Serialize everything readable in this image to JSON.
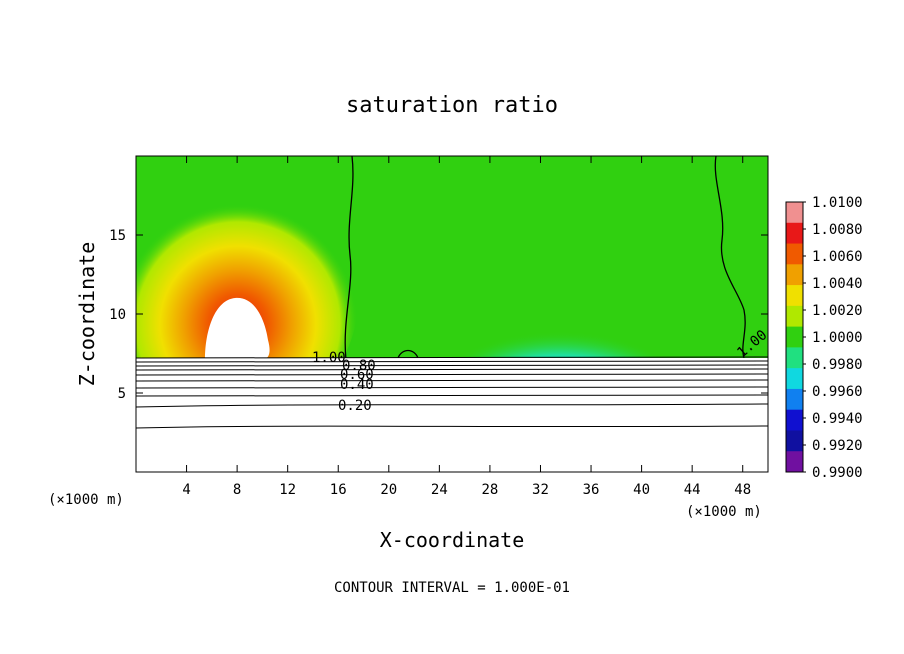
{
  "chart_data": {
    "type": "heatmap",
    "title": "saturation ratio",
    "xlabel": "X-coordinate",
    "ylabel": "Z-coordinate",
    "x_unit_label": "(×1000 m)",
    "z_unit_label": "(×1000 m)",
    "xlim": [
      0,
      50
    ],
    "ylim": [
      0,
      20
    ],
    "x_ticks": [
      4,
      8,
      12,
      16,
      20,
      24,
      28,
      32,
      36,
      40,
      44,
      48
    ],
    "y_ticks": [
      5,
      10,
      15
    ],
    "colorbar": {
      "min": 0.99,
      "max": 1.01,
      "labels": [
        "1.0100",
        "1.0080",
        "1.0060",
        "1.0040",
        "1.0020",
        "1.0000",
        "0.9980",
        "0.9960",
        "0.9940",
        "0.9920",
        "0.9900"
      ],
      "colors": [
        "#f09090",
        "#e81818",
        "#f05a00",
        "#f0a000",
        "#f0e000",
        "#b0e800",
        "#30d010",
        "#20e080",
        "#10d8e0",
        "#1080f0",
        "#1010d0",
        "#1010a0",
        "#7010a0"
      ]
    },
    "contour_labels": [
      "1.00",
      "0.80",
      "0.60",
      "0.40",
      "0.20",
      "1.00"
    ],
    "footer": "CONTOUR INTERVAL = 1.000E-01"
  }
}
